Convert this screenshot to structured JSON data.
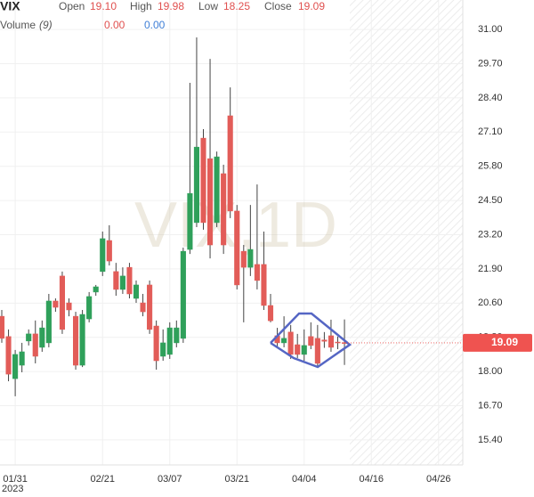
{
  "chart_data": {
    "type": "candlestick",
    "title": "VIX",
    "header": [
      {
        "name": "Open",
        "value": {
          "value": 19.1,
          "label": "19.10"
        }
      },
      {
        "name": "High",
        "value": {
          "value": 19.98,
          "label": "19.98"
        }
      },
      {
        "name": "Low",
        "value": {
          "value": 18.25,
          "label": "18.25"
        }
      },
      {
        "name": "Close",
        "value": {
          "value": 19.09,
          "label": "19.09"
        }
      }
    ],
    "volume": {
      "name": "Volume",
      "period": "(9)",
      "values": [
        {
          "value": 0,
          "label": "0.00"
        },
        {
          "value": 0,
          "label": "0.00"
        }
      ]
    },
    "watermark": "VIX,1D",
    "x_year": "2023",
    "categories": [
      null,
      null,
      "01/31",
      null,
      null,
      null,
      null,
      null,
      null,
      null,
      null,
      null,
      null,
      null,
      null,
      "02/21",
      null,
      null,
      null,
      null,
      null,
      null,
      null,
      null,
      null,
      "03/07",
      null,
      null,
      null,
      null,
      null,
      null,
      null,
      null,
      null,
      "03/21",
      null,
      null,
      null,
      null,
      null,
      null,
      null,
      null,
      null,
      "04/04",
      null,
      null,
      null,
      null,
      null,
      null,
      null,
      null,
      null,
      "04/16",
      null,
      null,
      null,
      null,
      null,
      null,
      null,
      null,
      null,
      "04/26",
      null,
      null,
      null
    ],
    "open": [
      20.1,
      19.33,
      17.73,
      18.24,
      19.16,
      19.43,
      18.92,
      19.09,
      20.68,
      21.63,
      20.61,
      20.1,
      18.24,
      20.0,
      21.02,
      21.8,
      22.98,
      21.8,
      21.12,
      21.96,
      20.78,
      20.61,
      21.29,
      19.73,
      18.58,
      18.65,
      19.09,
      19.26,
      22.64,
      23.66,
      26.87,
      26.09,
      23.66,
      25.52,
      27.72,
      24.1,
      22.57,
      21.96,
      22.07,
      22.07,
      20.51,
      19.36,
      19.09,
      19.5,
      19.02,
      18.65,
      19.33,
      19.26,
      19.2,
      19.36,
      19.12,
      19.1,
      null,
      null,
      null,
      null,
      null,
      null,
      null,
      null,
      null,
      null,
      null,
      null,
      null,
      null,
      null,
      null,
      null
    ],
    "high": [
      20.34,
      19.6,
      18.82,
      19.09,
      19.6,
      19.94,
      19.94,
      20.95,
      20.78,
      21.8,
      20.78,
      20.27,
      20.34,
      21.02,
      21.29,
      23.32,
      23.56,
      22.13,
      21.96,
      22.13,
      21.46,
      20.95,
      21.46,
      19.94,
      19.6,
      19.87,
      19.94,
      22.71,
      28.97,
      30.7,
      27.21,
      29.88,
      26.36,
      25.86,
      28.8,
      24.33,
      22.81,
      24.33,
      25.11,
      23.32,
      20.95,
      19.66,
      20.1,
      19.77,
      19.43,
      19.6,
      19.87,
      19.77,
      19.5,
      19.97,
      19.33,
      19.98,
      null,
      null,
      null,
      null,
      null,
      null,
      null,
      null,
      null,
      null,
      null,
      null,
      null,
      null,
      null,
      null,
      null
    ],
    "low": [
      19.09,
      17.63,
      17.06,
      17.97,
      18.99,
      18.31,
      18.75,
      18.92,
      20.27,
      19.43,
      20.1,
      18.07,
      18.17,
      19.87,
      20.88,
      21.63,
      22.03,
      20.88,
      20.95,
      20.78,
      20.61,
      20.1,
      19.43,
      18.07,
      18.41,
      18.48,
      18.92,
      19.09,
      22.47,
      23.49,
      23.39,
      22.3,
      23.49,
      22.47,
      23.83,
      21.12,
      19.87,
      21.63,
      21.12,
      20.34,
      19.87,
      18.92,
      18.92,
      18.48,
      18.51,
      18.41,
      18.85,
      18.17,
      18.9,
      18.75,
      18.85,
      18.25,
      null,
      null,
      null,
      null,
      null,
      null,
      null,
      null,
      null,
      null,
      null,
      null,
      null,
      null,
      null,
      null,
      null
    ],
    "close": [
      19.26,
      17.9,
      18.65,
      18.75,
      19.43,
      18.58,
      19.66,
      20.68,
      20.44,
      19.6,
      20.34,
      18.24,
      20.17,
      20.85,
      21.22,
      23.05,
      22.2,
      21.12,
      21.63,
      20.95,
      21.29,
      20.27,
      19.6,
      18.41,
      19.09,
      19.66,
      19.66,
      22.57,
      24.77,
      26.53,
      23.66,
      22.81,
      26.16,
      22.81,
      24.1,
      21.29,
      21.96,
      22.64,
      21.46,
      20.51,
      19.93,
      19.09,
      19.26,
      18.65,
      18.65,
      18.99,
      18.99,
      18.31,
      19.15,
      18.92,
      19.09,
      19.09,
      null,
      null,
      null,
      null,
      null,
      null,
      null,
      null,
      null,
      null,
      null,
      null,
      null,
      null,
      null,
      null,
      null
    ],
    "up_color": "#2fa05a",
    "down_color": "#e25c58",
    "wick_color": "#444444",
    "ylim": [
      14.45,
      32.12
    ],
    "yticks": [
      {
        "value": 31,
        "label": "31.00"
      },
      {
        "value": 29.7,
        "label": "29.70"
      },
      {
        "value": 28.4,
        "label": "28.40"
      },
      {
        "value": 27.1,
        "label": "27.10"
      },
      {
        "value": 25.8,
        "label": "25.80"
      },
      {
        "value": 24.5,
        "label": "24.50"
      },
      {
        "value": 23.2,
        "label": "23.20"
      },
      {
        "value": 21.9,
        "label": "21.90"
      },
      {
        "value": 20.6,
        "label": "20.60"
      },
      {
        "value": 19.3,
        "label": "19.30"
      },
      {
        "value": 18,
        "label": "18.00"
      },
      {
        "value": 16.7,
        "label": "16.70"
      },
      {
        "value": 15.4,
        "label": "15.40"
      }
    ],
    "last_price": {
      "value": 19.09,
      "label": "19.09"
    },
    "last_price_color": "#ef5350",
    "grid": true
  }
}
